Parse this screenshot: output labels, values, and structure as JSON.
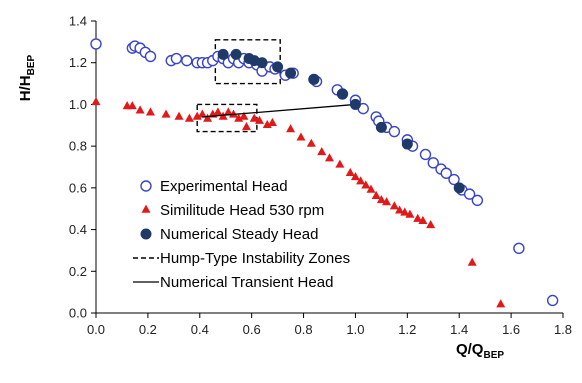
{
  "chart_data": {
    "type": "scatter",
    "xlabel": {
      "main": "Q/Q",
      "sub": "BEP"
    },
    "ylabel": {
      "main": "H/H",
      "sub": "BEP"
    },
    "xlim": [
      0,
      1.8
    ],
    "ylim": [
      0,
      1.4
    ],
    "x_ticks": [
      "0.0",
      "0.2",
      "0.4",
      "0.6",
      "0.8",
      "1.0",
      "1.2",
      "1.4",
      "1.6",
      "1.8"
    ],
    "y_ticks": [
      "0.0",
      "0.2",
      "0.4",
      "0.6",
      "0.8",
      "1.0",
      "1.2",
      "1.4"
    ],
    "grid": false,
    "legend_position": "bottom-left",
    "colors": {
      "experimental": "#3a44c8",
      "similitude": "#e01a1a",
      "numerical": "#1f3a68",
      "axis": "#000000"
    },
    "series": [
      {
        "name": "Experimental Head",
        "marker": "open-circle",
        "points": [
          [
            0.0,
            1.29
          ],
          [
            0.14,
            1.27
          ],
          [
            0.15,
            1.28
          ],
          [
            0.17,
            1.27
          ],
          [
            0.19,
            1.25
          ],
          [
            0.21,
            1.23
          ],
          [
            0.29,
            1.21
          ],
          [
            0.31,
            1.22
          ],
          [
            0.35,
            1.21
          ],
          [
            0.39,
            1.2
          ],
          [
            0.41,
            1.2
          ],
          [
            0.43,
            1.2
          ],
          [
            0.45,
            1.21
          ],
          [
            0.47,
            1.23
          ],
          [
            0.49,
            1.22
          ],
          [
            0.51,
            1.2
          ],
          [
            0.53,
            1.22
          ],
          [
            0.55,
            1.2
          ],
          [
            0.57,
            1.22
          ],
          [
            0.59,
            1.2
          ],
          [
            0.62,
            1.19
          ],
          [
            0.64,
            1.16
          ],
          [
            0.67,
            1.18
          ],
          [
            0.69,
            1.17
          ],
          [
            0.73,
            1.14
          ],
          [
            0.76,
            1.15
          ],
          [
            0.84,
            1.12
          ],
          [
            0.85,
            1.11
          ],
          [
            0.93,
            1.07
          ],
          [
            0.95,
            1.05
          ],
          [
            1.0,
            1.02
          ],
          [
            1.03,
            0.98
          ],
          [
            1.08,
            0.94
          ],
          [
            1.09,
            0.92
          ],
          [
            1.12,
            0.89
          ],
          [
            1.15,
            0.87
          ],
          [
            1.2,
            0.83
          ],
          [
            1.22,
            0.8
          ],
          [
            1.27,
            0.76
          ],
          [
            1.3,
            0.72
          ],
          [
            1.33,
            0.69
          ],
          [
            1.35,
            0.67
          ],
          [
            1.38,
            0.64
          ],
          [
            1.41,
            0.59
          ],
          [
            1.44,
            0.57
          ],
          [
            1.47,
            0.54
          ],
          [
            1.63,
            0.31
          ],
          [
            1.76,
            0.06
          ]
        ]
      },
      {
        "name": "Similitude Head 530 rpm",
        "marker": "filled-triangle",
        "points": [
          [
            0.0,
            1.01
          ],
          [
            0.12,
            0.99
          ],
          [
            0.14,
            0.99
          ],
          [
            0.17,
            0.97
          ],
          [
            0.21,
            0.96
          ],
          [
            0.27,
            0.95
          ],
          [
            0.32,
            0.94
          ],
          [
            0.36,
            0.93
          ],
          [
            0.39,
            0.94
          ],
          [
            0.41,
            0.95
          ],
          [
            0.43,
            0.93
          ],
          [
            0.45,
            0.95
          ],
          [
            0.47,
            0.96
          ],
          [
            0.49,
            0.94
          ],
          [
            0.51,
            0.96
          ],
          [
            0.53,
            0.95
          ],
          [
            0.55,
            0.93
          ],
          [
            0.57,
            0.94
          ],
          [
            0.58,
            0.89
          ],
          [
            0.61,
            0.93
          ],
          [
            0.63,
            0.92
          ],
          [
            0.66,
            0.9
          ],
          [
            0.68,
            0.91
          ],
          [
            0.75,
            0.88
          ],
          [
            0.79,
            0.84
          ],
          [
            0.83,
            0.81
          ],
          [
            0.87,
            0.77
          ],
          [
            0.9,
            0.74
          ],
          [
            0.94,
            0.71
          ],
          [
            0.98,
            0.67
          ],
          [
            1.0,
            0.65
          ],
          [
            1.02,
            0.63
          ],
          [
            1.04,
            0.61
          ],
          [
            1.06,
            0.59
          ],
          [
            1.08,
            0.56
          ],
          [
            1.1,
            0.54
          ],
          [
            1.12,
            0.53
          ],
          [
            1.15,
            0.51
          ],
          [
            1.17,
            0.49
          ],
          [
            1.19,
            0.48
          ],
          [
            1.21,
            0.47
          ],
          [
            1.24,
            0.45
          ],
          [
            1.26,
            0.44
          ],
          [
            1.29,
            0.42
          ],
          [
            1.45,
            0.24
          ],
          [
            1.56,
            0.04
          ]
        ]
      },
      {
        "name": "Numerical Steady Head",
        "marker": "filled-circle",
        "points": [
          [
            0.49,
            1.24
          ],
          [
            0.54,
            1.24
          ],
          [
            0.59,
            1.22
          ],
          [
            0.61,
            1.21
          ],
          [
            0.64,
            1.2
          ],
          [
            0.7,
            1.18
          ],
          [
            0.75,
            1.15
          ],
          [
            0.84,
            1.12
          ],
          [
            0.95,
            1.05
          ],
          [
            1.0,
            1.0
          ],
          [
            1.1,
            0.89
          ],
          [
            1.2,
            0.81
          ],
          [
            1.4,
            0.6
          ]
        ]
      },
      {
        "name": "Numerical Transient Head",
        "marker": "line",
        "points": [
          [
            0.41,
            0.94
          ],
          [
            1.0,
            1.0
          ]
        ]
      }
    ],
    "instability_zones": {
      "name": "Hump-Type Instability Zones",
      "zones": [
        {
          "x": [
            0.46,
            0.71
          ],
          "y": [
            1.1,
            1.31
          ]
        },
        {
          "x": [
            0.39,
            0.62
          ],
          "y": [
            0.87,
            1.0
          ]
        }
      ]
    }
  }
}
